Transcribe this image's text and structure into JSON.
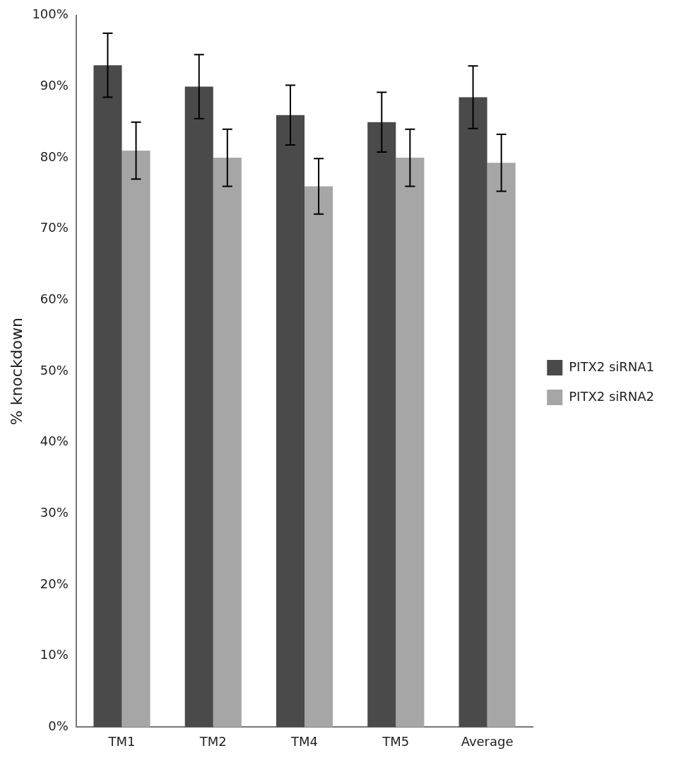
{
  "chart_data": {
    "type": "bar",
    "ylabel": "% knockdown",
    "categories": [
      "TM1",
      "TM2",
      "TM4",
      "TM5",
      "Average"
    ],
    "series": [
      {
        "name": "PITX2 siRNA1",
        "color": "#4a4a4a",
        "values": [
          93,
          90,
          86,
          85,
          88.5
        ],
        "errors": [
          4.5,
          4.5,
          4.2,
          4.2,
          4.4
        ]
      },
      {
        "name": "PITX2 siRNA2",
        "color": "#a6a6a6",
        "values": [
          81,
          80,
          76,
          80,
          79.3
        ],
        "errors": [
          4,
          4,
          3.9,
          4,
          4
        ]
      }
    ],
    "ylim": [
      0,
      100
    ],
    "yticks": [
      {
        "value": 0,
        "label": "0%"
      },
      {
        "value": 10,
        "label": "10%"
      },
      {
        "value": 20,
        "label": "20%"
      },
      {
        "value": 30,
        "label": "30%"
      },
      {
        "value": 40,
        "label": "40%"
      },
      {
        "value": 50,
        "label": "50%"
      },
      {
        "value": 60,
        "label": "60%"
      },
      {
        "value": 70,
        "label": "70%"
      },
      {
        "value": 80,
        "label": "80%"
      },
      {
        "value": 90,
        "label": "90%"
      },
      {
        "value": 100,
        "label": "100%"
      }
    ],
    "legend": "right"
  }
}
